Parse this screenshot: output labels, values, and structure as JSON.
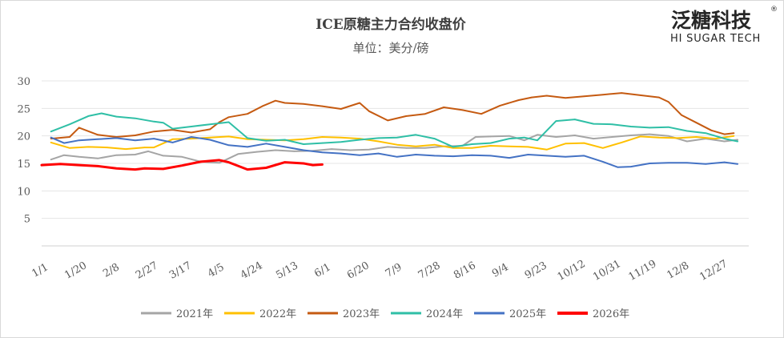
{
  "chart_data": {
    "type": "line",
    "title": "ICE原糖主力合约收盘价",
    "subtitle": "单位：美分/磅",
    "ylim": [
      0,
      30
    ],
    "yticks": [
      5,
      10,
      15,
      20,
      25,
      30
    ],
    "x_ticks": [
      {
        "label": "1/1",
        "day": 0
      },
      {
        "label": "1/20",
        "day": 19
      },
      {
        "label": "2/8",
        "day": 38
      },
      {
        "label": "2/27",
        "day": 57
      },
      {
        "label": "3/17",
        "day": 75
      },
      {
        "label": "4/5",
        "day": 94
      },
      {
        "label": "4/24",
        "day": 113
      },
      {
        "label": "5/13",
        "day": 132
      },
      {
        "label": "6/1",
        "day": 151
      },
      {
        "label": "6/20",
        "day": 170
      },
      {
        "label": "7/9",
        "day": 189
      },
      {
        "label": "7/28",
        "day": 208
      },
      {
        "label": "8/16",
        "day": 227
      },
      {
        "label": "9/4",
        "day": 246
      },
      {
        "label": "9/23",
        "day": 265
      },
      {
        "label": "10/12",
        "day": 284
      },
      {
        "label": "10/31",
        "day": 303
      },
      {
        "label": "11/19",
        "day": 322
      },
      {
        "label": "12/8",
        "day": 341
      },
      {
        "label": "12/27",
        "day": 360
      }
    ],
    "x_max_day": 378,
    "legend_position": "bottom",
    "grid": "horizontal",
    "series": [
      {
        "name": "2021年",
        "color": "#a5a5a5",
        "width": 2,
        "days": [
          5,
          12,
          20,
          30,
          40,
          50,
          57,
          65,
          75,
          85,
          95,
          105,
          115,
          125,
          135,
          145,
          155,
          165,
          175,
          185,
          195,
          205,
          215,
          225,
          232,
          240,
          250,
          258,
          265,
          275,
          285,
          295,
          305,
          315,
          325,
          335,
          345,
          355,
          365,
          372
        ],
        "values": [
          15.7,
          16.5,
          16.2,
          15.9,
          16.5,
          16.6,
          17.2,
          16.4,
          16.2,
          15.3,
          15.1,
          16.7,
          17.1,
          17.4,
          17.2,
          17.3,
          17.6,
          17.4,
          17.5,
          18.0,
          17.8,
          17.8,
          18.1,
          18.2,
          19.8,
          19.9,
          20.0,
          19.2,
          20.2,
          19.8,
          20.1,
          19.5,
          19.8,
          20.1,
          20.3,
          20.0,
          19.0,
          19.5,
          19.0,
          19.3
        ]
      },
      {
        "name": "2022年",
        "color": "#ffc000",
        "width": 2,
        "days": [
          5,
          15,
          25,
          35,
          45,
          55,
          60,
          70,
          80,
          90,
          100,
          110,
          120,
          130,
          140,
          150,
          160,
          170,
          180,
          190,
          200,
          210,
          220,
          230,
          240,
          250,
          260,
          270,
          280,
          290,
          300,
          310,
          320,
          330,
          340,
          350,
          360,
          370
        ],
        "values": [
          18.8,
          17.8,
          18.0,
          17.9,
          17.6,
          17.9,
          17.9,
          19.4,
          19.5,
          19.7,
          19.9,
          19.4,
          19.3,
          19.2,
          19.4,
          19.8,
          19.7,
          19.5,
          19.0,
          18.4,
          18.1,
          18.4,
          17.8,
          17.8,
          18.2,
          18.1,
          18.0,
          17.5,
          18.6,
          18.7,
          17.8,
          18.8,
          19.9,
          19.7,
          19.6,
          19.8,
          19.5,
          20.0
        ]
      },
      {
        "name": "2023年",
        "color": "#c55a11",
        "width": 2,
        "days": [
          5,
          15,
          20,
          30,
          40,
          50,
          60,
          70,
          80,
          90,
          95,
          100,
          110,
          118,
          125,
          130,
          140,
          150,
          160,
          170,
          175,
          185,
          195,
          205,
          215,
          225,
          235,
          245,
          255,
          262,
          270,
          280,
          290,
          300,
          310,
          320,
          330,
          335,
          342,
          350,
          358,
          365,
          370
        ],
        "values": [
          19.5,
          19.8,
          21.5,
          20.2,
          19.8,
          20.1,
          20.8,
          21.1,
          20.6,
          21.2,
          22.5,
          23.4,
          24.0,
          25.4,
          26.4,
          26.0,
          25.8,
          25.4,
          24.9,
          26.0,
          24.5,
          22.8,
          23.6,
          24.0,
          25.2,
          24.7,
          24.0,
          25.5,
          26.5,
          27.0,
          27.3,
          26.9,
          27.2,
          27.5,
          27.8,
          27.4,
          27.0,
          26.2,
          23.8,
          22.4,
          21.0,
          20.3,
          20.5
        ]
      },
      {
        "name": "2024年",
        "color": "#2fbfa6",
        "width": 2,
        "days": [
          5,
          15,
          25,
          32,
          40,
          50,
          60,
          65,
          70,
          80,
          90,
          100,
          110,
          120,
          130,
          140,
          150,
          160,
          170,
          180,
          190,
          200,
          210,
          220,
          230,
          240,
          250,
          258,
          265,
          275,
          285,
          295,
          305,
          315,
          325,
          335,
          345,
          355,
          365,
          372
        ],
        "values": [
          20.8,
          22.1,
          23.6,
          24.1,
          23.5,
          23.2,
          22.6,
          22.4,
          21.3,
          21.7,
          22.1,
          22.5,
          19.6,
          19.1,
          19.3,
          18.5,
          18.7,
          18.9,
          19.3,
          19.6,
          19.7,
          20.2,
          19.5,
          18.0,
          18.5,
          18.7,
          19.5,
          19.7,
          19.2,
          22.7,
          23.0,
          22.2,
          22.1,
          21.7,
          21.5,
          21.6,
          20.9,
          20.5,
          19.5,
          19.0
        ]
      },
      {
        "name": "2025年",
        "color": "#4472c4",
        "width": 2,
        "days": [
          5,
          12,
          20,
          30,
          40,
          50,
          60,
          70,
          80,
          90,
          100,
          110,
          120,
          130,
          140,
          150,
          160,
          170,
          180,
          190,
          200,
          210,
          220,
          230,
          240,
          250,
          260,
          270,
          280,
          290,
          300,
          308,
          315,
          325,
          335,
          345,
          355,
          365,
          372
        ],
        "values": [
          19.7,
          18.7,
          19.2,
          19.4,
          19.6,
          19.2,
          19.5,
          18.8,
          19.8,
          19.3,
          18.3,
          18.0,
          18.6,
          18.0,
          17.4,
          17.0,
          16.8,
          16.5,
          16.8,
          16.2,
          16.6,
          16.4,
          16.3,
          16.5,
          16.4,
          16.0,
          16.6,
          16.4,
          16.2,
          16.4,
          15.3,
          14.3,
          14.4,
          15.0,
          15.1,
          15.1,
          14.9,
          15.2,
          14.9
        ]
      },
      {
        "name": "2026年",
        "color": "#ff0000",
        "width": 3,
        "days": [
          0,
          10,
          20,
          30,
          40,
          50,
          55,
          65,
          75,
          85,
          95,
          100,
          110,
          120,
          130,
          140,
          145,
          150
        ],
        "values": [
          14.7,
          14.9,
          14.7,
          14.5,
          14.1,
          13.9,
          14.1,
          14.0,
          14.6,
          15.3,
          15.6,
          15.2,
          13.9,
          14.2,
          15.2,
          15.0,
          14.7,
          14.8
        ]
      }
    ]
  },
  "logo": {
    "cn": "泛糖科技",
    "en": "HI SUGAR TECH",
    "mark": "®"
  }
}
